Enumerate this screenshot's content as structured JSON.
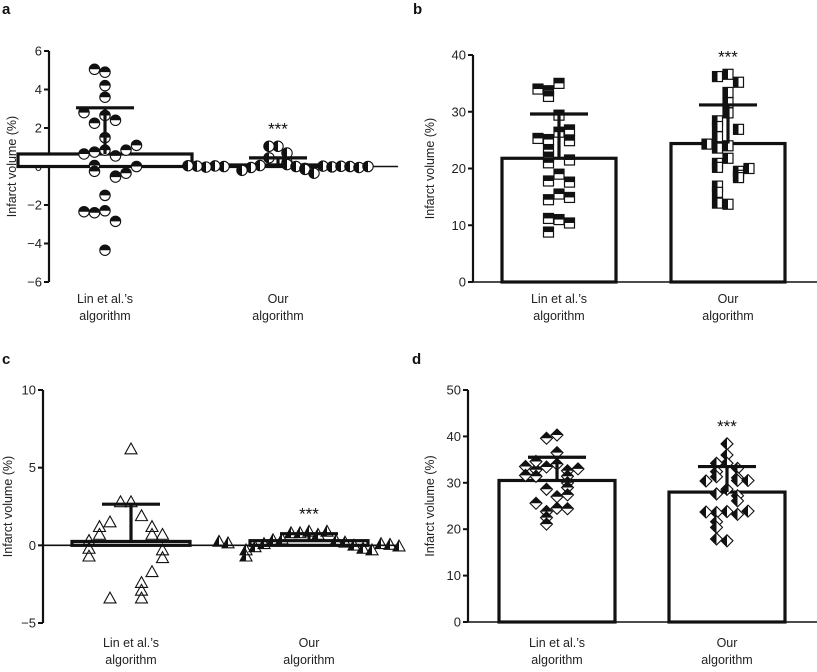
{
  "chart_data": [
    {
      "panel": "a",
      "type": "bar",
      "title": "",
      "xlabel": "",
      "ylabel": "Infarct volume (%)",
      "ylim": [
        -6,
        6
      ],
      "yticks": [
        6,
        4,
        2,
        0,
        -2,
        -4,
        -6
      ],
      "ytick_labels": [
        "6",
        "4",
        "2",
        "0",
        "−2",
        "−4",
        "−6"
      ],
      "categories": [
        "Lin et al.’s algorithm",
        "Our algorithm"
      ],
      "category_lines": [
        [
          "Lin et al.’s",
          "algorithm"
        ],
        [
          "Our",
          "algorithm"
        ]
      ],
      "bar_fill": "#ffffff",
      "bar_stroke": "#111111",
      "marker": [
        "circle-half-bottom-white",
        "circle-half-left-black"
      ],
      "series": [
        {
          "name": "Lin et al.’s algorithm",
          "mean": 0.65,
          "error_upper": 3.05,
          "points": [
            4.9,
            5.05,
            4.2,
            3.6,
            2.65,
            2.25,
            2.4,
            2.8,
            1.5,
            0.85,
            0.75,
            0.55,
            0.65,
            0.85,
            1.1,
            0.05,
            -0.25,
            -0.5,
            -0.55,
            -0.35,
            0.0,
            -1.5,
            -2.3,
            -2.4,
            -2.85,
            -2.35,
            -4.35
          ]
        },
        {
          "name": "Our algorithm",
          "mean": 0.08,
          "error_upper": 0.45,
          "points": [
            1.05,
            1.05,
            0.7,
            0.45,
            0.2,
            0.1,
            0.05,
            0.0,
            -0.05,
            -0.1,
            -0.15,
            -0.2,
            -0.35,
            0.02,
            0.0,
            -0.02,
            0.03,
            0.01,
            -0.03,
            0.0,
            0.02,
            -0.05,
            0.04,
            0.0
          ]
        }
      ],
      "annotations": [
        "***"
      ],
      "significance": "***"
    },
    {
      "panel": "b",
      "type": "bar",
      "ylabel": "Infarct volume (%)",
      "ylim": [
        0,
        40
      ],
      "yticks": [
        40,
        30,
        20,
        10,
        0
      ],
      "ytick_labels": [
        "40",
        "30",
        "20",
        "10",
        "0"
      ],
      "categories": [
        "Lin et al.’s algorithm",
        "Our algorithm"
      ],
      "category_lines": [
        [
          "Lin et al.’s",
          "algorithm"
        ],
        [
          "Our",
          "algorithm"
        ]
      ],
      "marker": [
        "square-half-top-black",
        "square-half-left-black"
      ],
      "series": [
        {
          "name": "Lin et al.’s algorithm",
          "mean": 21.8,
          "error_upper": 29.6,
          "points": [
            35.0,
            33.7,
            32.7,
            34.0,
            29.4,
            26.4,
            25.1,
            24.9,
            25.3,
            26.8,
            23.3,
            22.0,
            21.0,
            21.5,
            19.0,
            17.8,
            17.6,
            15.5,
            14.5,
            14.9,
            11.0,
            11.2,
            10.4,
            8.8
          ]
        },
        {
          "name": "Our algorithm",
          "mean": 24.4,
          "error_upper": 31.2,
          "points": [
            36.6,
            36.2,
            35.2,
            33.4,
            31.6,
            29.8,
            28.4,
            27.4,
            26.9,
            25.6,
            24.0,
            23.6,
            24.3,
            21.8,
            20.9,
            20.2,
            19.5,
            18.8,
            20.0,
            18.4,
            16.9,
            15.8,
            13.7,
            13.9
          ]
        }
      ],
      "significance": "***"
    },
    {
      "panel": "c",
      "type": "bar",
      "ylabel": "Infarct volume (%)",
      "ylim": [
        -5,
        10
      ],
      "yticks": [
        10,
        5,
        0,
        -5
      ],
      "ytick_labels": [
        "10",
        "5",
        "0",
        "−5"
      ],
      "categories": [
        "Lin et al.’s algorithm",
        "Our algorithm"
      ],
      "category_lines": [
        [
          "Lin et al.’s",
          "algorithm"
        ],
        [
          "Our",
          "algorithm"
        ]
      ],
      "marker": [
        "triangle-open",
        "triangle-half-left-black"
      ],
      "series": [
        {
          "name": "Lin et al.’s algorithm",
          "mean": 0.25,
          "error_upper": 2.65,
          "points": [
            6.2,
            2.8,
            2.8,
            1.9,
            1.5,
            1.2,
            1.2,
            0.7,
            0.7,
            0.7,
            0.3,
            -0.3,
            -0.2,
            -0.8,
            -0.7,
            -1.7,
            -2.4,
            -2.9,
            -3.4,
            -3.4
          ]
        },
        {
          "name": "Our algorithm",
          "mean": 0.3,
          "error_upper": 0.75,
          "points": [
            0.9,
            0.8,
            0.7,
            0.8,
            0.9,
            0.4,
            0.3,
            0.35,
            0.2,
            0.1,
            0.0,
            -0.1,
            -0.2,
            -0.3,
            -0.3,
            -0.7,
            0.1,
            0.15,
            0.05,
            0.25,
            -0.05
          ]
        }
      ],
      "significance": "***"
    },
    {
      "panel": "d",
      "type": "bar",
      "ylabel": "Infarct volume (%)",
      "ylim": [
        0,
        50
      ],
      "yticks": [
        50,
        40,
        30,
        20,
        10,
        0
      ],
      "ytick_labels": [
        "50",
        "40",
        "30",
        "20",
        "10",
        "0"
      ],
      "categories": [
        "Lin et al.’s algorithm",
        "Our algorithm"
      ],
      "category_lines": [
        [
          "Lin et al.’s",
          "algorithm"
        ],
        [
          "Our",
          "algorithm"
        ]
      ],
      "marker": [
        "diamond-half-top-black",
        "diamond-half-left-black"
      ],
      "series": [
        {
          "name": "Lin et al.’s algorithm",
          "mean": 30.5,
          "error_upper": 35.5,
          "points": [
            40.3,
            39.6,
            36.5,
            34.0,
            33.4,
            32.6,
            32.8,
            33.0,
            33.5,
            34.6,
            31.4,
            31.4,
            31.6,
            30.0,
            28.6,
            29.0,
            27.0,
            27.4,
            24.5,
            23.8,
            24.4,
            25.6,
            22.5,
            21.1
          ]
        },
        {
          "name": "Our algorithm",
          "mean": 28.0,
          "error_upper": 33.5,
          "points": [
            38.4,
            36.0,
            34.2,
            34.2,
            33.1,
            32.4,
            31.3,
            31.1,
            30.5,
            30.4,
            30.5,
            28.6,
            27.6,
            27.2,
            26.1,
            23.8,
            23.6,
            23.2,
            23.7,
            23.9,
            21.6,
            20.4,
            17.5,
            17.9
          ]
        }
      ],
      "significance": "***"
    }
  ],
  "panels": [
    "a",
    "b",
    "c",
    "d"
  ]
}
